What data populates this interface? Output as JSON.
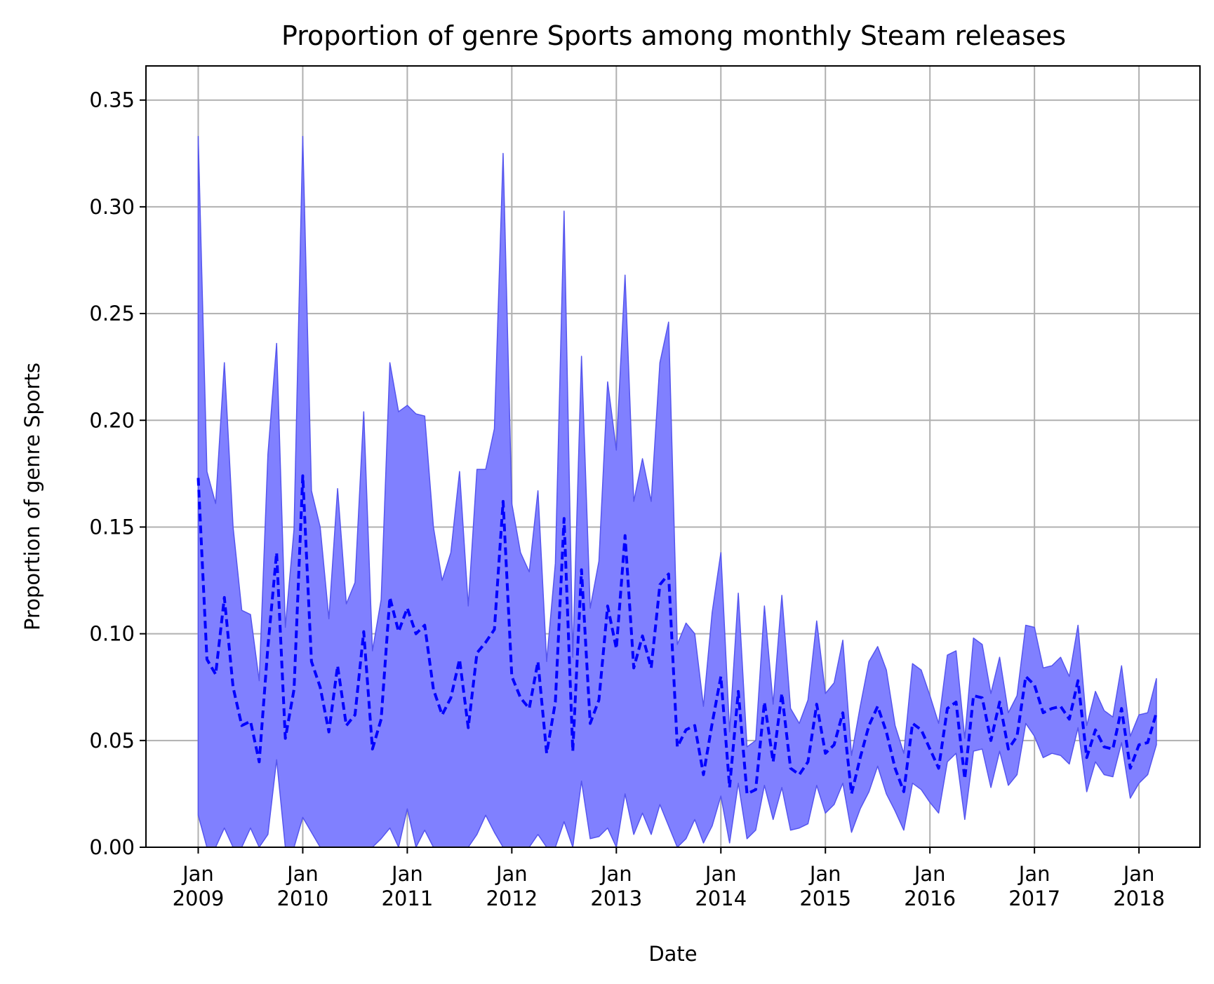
{
  "chart_data": {
    "type": "area",
    "title": "Proportion of genre Sports among monthly Steam releases",
    "xlabel": "Date",
    "ylabel": "Proportion of genre Sports",
    "xlim": [
      "2008-07",
      "2018-08"
    ],
    "ylim": [
      0,
      0.366
    ],
    "grid": true,
    "colors": {
      "band_fill": "#8080ff",
      "band_edge": "#5555ee",
      "line": "#0000ff"
    },
    "x_ticks": [
      {
        "x": "2009-01",
        "label": [
          "Jan",
          "2009"
        ]
      },
      {
        "x": "2010-01",
        "label": [
          "Jan",
          "2010"
        ]
      },
      {
        "x": "2011-01",
        "label": [
          "Jan",
          "2011"
        ]
      },
      {
        "x": "2012-01",
        "label": [
          "Jan",
          "2012"
        ]
      },
      {
        "x": "2013-01",
        "label": [
          "Jan",
          "2013"
        ]
      },
      {
        "x": "2014-01",
        "label": [
          "Jan",
          "2014"
        ]
      },
      {
        "x": "2015-01",
        "label": [
          "Jan",
          "2015"
        ]
      },
      {
        "x": "2016-01",
        "label": [
          "Jan",
          "2016"
        ]
      },
      {
        "x": "2017-01",
        "label": [
          "Jan",
          "2017"
        ]
      },
      {
        "x": "2018-01",
        "label": [
          "Jan",
          "2018"
        ]
      }
    ],
    "y_ticks": [
      {
        "y": 0.0,
        "label": "0.00"
      },
      {
        "y": 0.05,
        "label": "0.05"
      },
      {
        "y": 0.1,
        "label": "0.10"
      },
      {
        "y": 0.15,
        "label": "0.15"
      },
      {
        "y": 0.2,
        "label": "0.20"
      },
      {
        "y": 0.25,
        "label": "0.25"
      },
      {
        "y": 0.3,
        "label": "0.30"
      },
      {
        "y": 0.35,
        "label": "0.35"
      }
    ],
    "x": [
      "2009-01",
      "2009-02",
      "2009-03",
      "2009-04",
      "2009-05",
      "2009-06",
      "2009-07",
      "2009-08",
      "2009-09",
      "2009-10",
      "2009-11",
      "2009-12",
      "2010-01",
      "2010-02",
      "2010-03",
      "2010-04",
      "2010-05",
      "2010-06",
      "2010-07",
      "2010-08",
      "2010-09",
      "2010-10",
      "2010-11",
      "2010-12",
      "2011-01",
      "2011-02",
      "2011-03",
      "2011-04",
      "2011-05",
      "2011-06",
      "2011-07",
      "2011-08",
      "2011-09",
      "2011-10",
      "2011-11",
      "2011-12",
      "2012-01",
      "2012-02",
      "2012-03",
      "2012-04",
      "2012-05",
      "2012-06",
      "2012-07",
      "2012-08",
      "2012-09",
      "2012-10",
      "2012-11",
      "2012-12",
      "2013-01",
      "2013-02",
      "2013-03",
      "2013-04",
      "2013-05",
      "2013-06",
      "2013-07",
      "2013-08",
      "2013-09",
      "2013-10",
      "2013-11",
      "2013-12",
      "2014-01",
      "2014-02",
      "2014-03",
      "2014-04",
      "2014-05",
      "2014-06",
      "2014-07",
      "2014-08",
      "2014-09",
      "2014-10",
      "2014-11",
      "2014-12",
      "2015-01",
      "2015-02",
      "2015-03",
      "2015-04",
      "2015-05",
      "2015-06",
      "2015-07",
      "2015-08",
      "2015-09",
      "2015-10",
      "2015-11",
      "2015-12",
      "2016-01",
      "2016-02",
      "2016-03",
      "2016-04",
      "2016-05",
      "2016-06",
      "2016-07",
      "2016-08",
      "2016-09",
      "2016-10",
      "2016-11",
      "2016-12",
      "2017-01",
      "2017-02",
      "2017-03",
      "2017-04",
      "2017-05",
      "2017-06",
      "2017-07",
      "2017-08",
      "2017-09",
      "2017-10",
      "2017-11",
      "2017-12",
      "2018-01",
      "2018-02",
      "2018-03"
    ],
    "series": [
      {
        "values": [
          0.173,
          0.088,
          0.081,
          0.117,
          0.075,
          0.057,
          0.059,
          0.04,
          0.094,
          0.138,
          0.051,
          0.074,
          0.174,
          0.087,
          0.075,
          0.054,
          0.085,
          0.057,
          0.062,
          0.101,
          0.046,
          0.06,
          0.117,
          0.101,
          0.112,
          0.1,
          0.104,
          0.074,
          0.062,
          0.07,
          0.088,
          0.056,
          0.091,
          0.096,
          0.102,
          0.162,
          0.08,
          0.07,
          0.065,
          0.087,
          0.044,
          0.068,
          0.154,
          0.045,
          0.13,
          0.058,
          0.069,
          0.113,
          0.093,
          0.146,
          0.084,
          0.099,
          0.084,
          0.123,
          0.128,
          0.047,
          0.055,
          0.057,
          0.034,
          0.058,
          0.08,
          0.028,
          0.073,
          0.025,
          0.027,
          0.068,
          0.04,
          0.072,
          0.037,
          0.034,
          0.04,
          0.067,
          0.044,
          0.048,
          0.063,
          0.025,
          0.042,
          0.057,
          0.066,
          0.054,
          0.037,
          0.026,
          0.058,
          0.055,
          0.046,
          0.037,
          0.065,
          0.068,
          0.032,
          0.071,
          0.07,
          0.05,
          0.068,
          0.046,
          0.052,
          0.08,
          0.076,
          0.063,
          0.065,
          0.066,
          0.06,
          0.078,
          0.042,
          0.055,
          0.047,
          0.046,
          0.065,
          0.037,
          0.048,
          0.049,
          0.063
        ]
      }
    ],
    "band_lower": [
      0.015,
      0.0,
      0.0,
      0.009,
      0.0,
      0.0,
      0.009,
      0.0,
      0.006,
      0.041,
      0.0,
      0.0,
      0.014,
      0.007,
      0.0,
      0.0,
      0.0,
      0.0,
      0.0,
      0.0,
      0.0,
      0.004,
      0.009,
      0.0,
      0.018,
      0.0,
      0.008,
      0.0,
      0.0,
      0.0,
      0.0,
      0.0,
      0.006,
      0.015,
      0.007,
      0.0,
      0.0,
      0.0,
      0.0,
      0.006,
      0.0,
      0.0,
      0.012,
      0.0,
      0.031,
      0.004,
      0.005,
      0.009,
      0.0,
      0.025,
      0.006,
      0.016,
      0.006,
      0.02,
      0.01,
      0.0,
      0.004,
      0.013,
      0.002,
      0.01,
      0.024,
      0.002,
      0.03,
      0.004,
      0.008,
      0.029,
      0.013,
      0.028,
      0.008,
      0.009,
      0.011,
      0.029,
      0.016,
      0.02,
      0.03,
      0.007,
      0.018,
      0.026,
      0.038,
      0.025,
      0.017,
      0.008,
      0.03,
      0.027,
      0.021,
      0.016,
      0.04,
      0.044,
      0.013,
      0.045,
      0.046,
      0.028,
      0.045,
      0.029,
      0.034,
      0.058,
      0.052,
      0.042,
      0.044,
      0.043,
      0.039,
      0.056,
      0.026,
      0.04,
      0.034,
      0.033,
      0.049,
      0.023,
      0.03,
      0.034,
      0.048
    ],
    "band_upper": [
      0.333,
      0.176,
      0.161,
      0.227,
      0.15,
      0.111,
      0.109,
      0.078,
      0.184,
      0.236,
      0.103,
      0.149,
      0.333,
      0.167,
      0.15,
      0.107,
      0.168,
      0.114,
      0.124,
      0.204,
      0.092,
      0.116,
      0.227,
      0.204,
      0.207,
      0.203,
      0.202,
      0.15,
      0.125,
      0.138,
      0.176,
      0.113,
      0.177,
      0.177,
      0.196,
      0.325,
      0.161,
      0.138,
      0.129,
      0.167,
      0.087,
      0.133,
      0.298,
      0.089,
      0.23,
      0.112,
      0.134,
      0.218,
      0.186,
      0.268,
      0.162,
      0.182,
      0.162,
      0.227,
      0.246,
      0.095,
      0.105,
      0.1,
      0.066,
      0.11,
      0.138,
      0.054,
      0.119,
      0.047,
      0.05,
      0.113,
      0.067,
      0.118,
      0.065,
      0.058,
      0.069,
      0.106,
      0.072,
      0.077,
      0.097,
      0.043,
      0.066,
      0.087,
      0.094,
      0.083,
      0.057,
      0.044,
      0.086,
      0.083,
      0.071,
      0.058,
      0.09,
      0.092,
      0.051,
      0.098,
      0.095,
      0.072,
      0.089,
      0.063,
      0.071,
      0.104,
      0.103,
      0.084,
      0.085,
      0.089,
      0.08,
      0.104,
      0.057,
      0.073,
      0.064,
      0.061,
      0.085,
      0.052,
      0.062,
      0.063,
      0.079
    ]
  }
}
